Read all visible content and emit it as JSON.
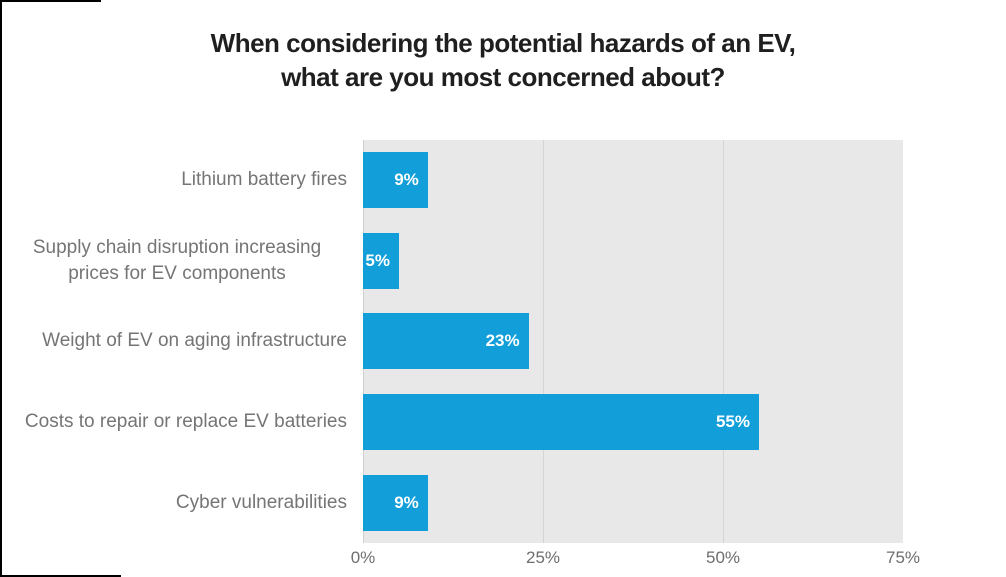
{
  "frame": {
    "border_color": "#000000"
  },
  "chart_data": {
    "type": "bar",
    "orientation": "horizontal",
    "title_lines": [
      "When considering the potential hazards of an EV,",
      "what are you most concerned about?"
    ],
    "categories": [
      "Lithium battery fires",
      "Supply chain disruption increasing prices for EV components",
      "Weight of EV on aging infrastructure",
      "Costs to repair or replace EV batteries",
      "Cyber vulnerabilities"
    ],
    "values": [
      9,
      5,
      23,
      55,
      9
    ],
    "value_labels": [
      "9%",
      "5%",
      "23%",
      "55%",
      "9%"
    ],
    "x_ticks": [
      {
        "label": "0%",
        "value": 0
      },
      {
        "label": "25%",
        "value": 25
      },
      {
        "label": "50%",
        "value": 50
      },
      {
        "label": "75%",
        "value": 75
      }
    ],
    "xlim": [
      0,
      75
    ],
    "grid": true,
    "legend": false,
    "plot_bg": "#e8e8e8",
    "colors": {
      "bar": "#119ed9",
      "gridline": "#d4d4d4",
      "category_label": "#757575",
      "tick_label": "#6e6e6e",
      "title": "#1f1f1f",
      "value_label": "#ffffff"
    }
  }
}
